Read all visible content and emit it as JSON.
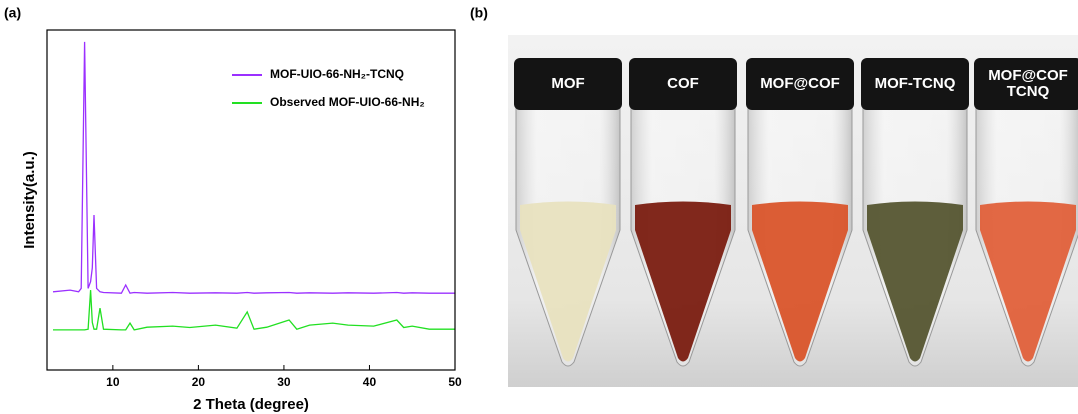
{
  "panel_labels": [
    "(a)",
    "(b)"
  ],
  "chart_data": {
    "type": "line",
    "x_label": "2 Theta (degree)",
    "y_label": "Intensity(a.u.)",
    "x": [
      3,
      5,
      6,
      6.3,
      6.7,
      7.1,
      7.4,
      7.6,
      7.8,
      8.1,
      8.5,
      8.9,
      11,
      11.5,
      12,
      12.5,
      14,
      17,
      19,
      22,
      24.5,
      25.7,
      26.5,
      28,
      30.6,
      31.5,
      33,
      35.7,
      37.5,
      40.5,
      43.2,
      44,
      45,
      47,
      50
    ],
    "series": [
      {
        "name": "MOF-UIO-66-NH₂-TCNQ",
        "color": "#9b30ff",
        "values": [
          23,
          23.5,
          23,
          24,
          96.5,
          24,
          26,
          30,
          45.6,
          24,
          23,
          22.8,
          22.6,
          25,
          22.6,
          22.8,
          22.6,
          22.8,
          22.6,
          22.7,
          22.6,
          22.8,
          22.6,
          22.7,
          22.8,
          22.6,
          22.7,
          22.6,
          22.7,
          22.6,
          22.8,
          22.6,
          22.7,
          22.6,
          22.6
        ]
      },
      {
        "name": "Observed MOF-UIO-66-NH₂",
        "color": "#22e022",
        "values": [
          11.8,
          11.8,
          11.8,
          11.8,
          11.8,
          12,
          23.5,
          14,
          12,
          12,
          18.2,
          12,
          11.8,
          11.8,
          13.8,
          11.8,
          12.6,
          12.9,
          12.5,
          13.2,
          12.3,
          17.1,
          12,
          12.6,
          14.7,
          12,
          13.2,
          13.8,
          13.2,
          12.9,
          14.7,
          12.5,
          12.9,
          12,
          12
        ]
      }
    ],
    "xlim": [
      2.3,
      50
    ],
    "xticks": [
      10,
      20,
      30,
      40,
      50
    ],
    "ylim": [
      0,
      100
    ],
    "legend": "upper right",
    "grid": false
  },
  "photo": {
    "vials": [
      {
        "label": [
          "MOF"
        ],
        "liquid_color": "#e8e2bf"
      },
      {
        "label": [
          "COF"
        ],
        "liquid_color": "#7a1c10"
      },
      {
        "label": [
          "MOF@COF"
        ],
        "liquid_color": "#d9542a"
      },
      {
        "label": [
          "MOF-TCNQ"
        ],
        "liquid_color": "#555530"
      },
      {
        "label": [
          "MOF@COF",
          "TCNQ"
        ],
        "liquid_color": "#e0603a"
      }
    ]
  }
}
